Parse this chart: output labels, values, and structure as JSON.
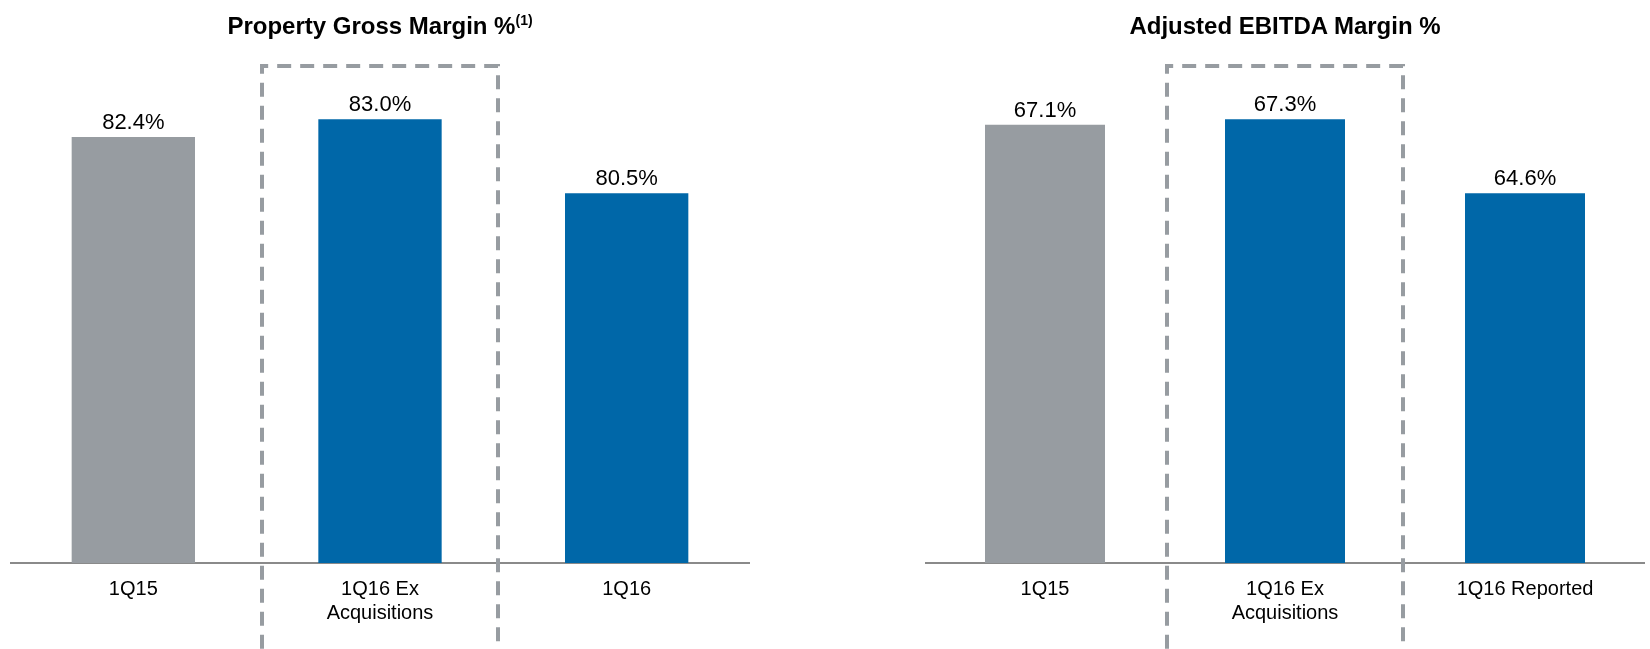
{
  "chart_data": [
    {
      "type": "bar",
      "title": "Property Gross Margin %$^{(1)}$",
      "categories": [
        "1Q15",
        "1Q16 Ex Acquisitions",
        "1Q16"
      ],
      "values": [
        82.4,
        83.0,
        80.5
      ],
      "value_labels": [
        "82.4%",
        "83.0%",
        "80.5%"
      ],
      "colors": [
        "#979ca1",
        "#0067a8",
        "#0067a8"
      ],
      "tick_labels": "x"
    },
    {
      "type": "bar",
      "title": "Adjusted EBITDA Margin %",
      "categories": [
        "1Q15",
        "1Q16 Ex Acquisitions",
        "1Q16 Reported"
      ],
      "values": [
        67.1,
        67.3,
        64.6
      ],
      "value_labels": [
        "67.1%",
        "67.3%",
        "64.6%"
      ],
      "colors": [
        "#979ca1",
        "#0067a8",
        "#0067a8"
      ],
      "tick_labels": "x"
    }
  ]
}
